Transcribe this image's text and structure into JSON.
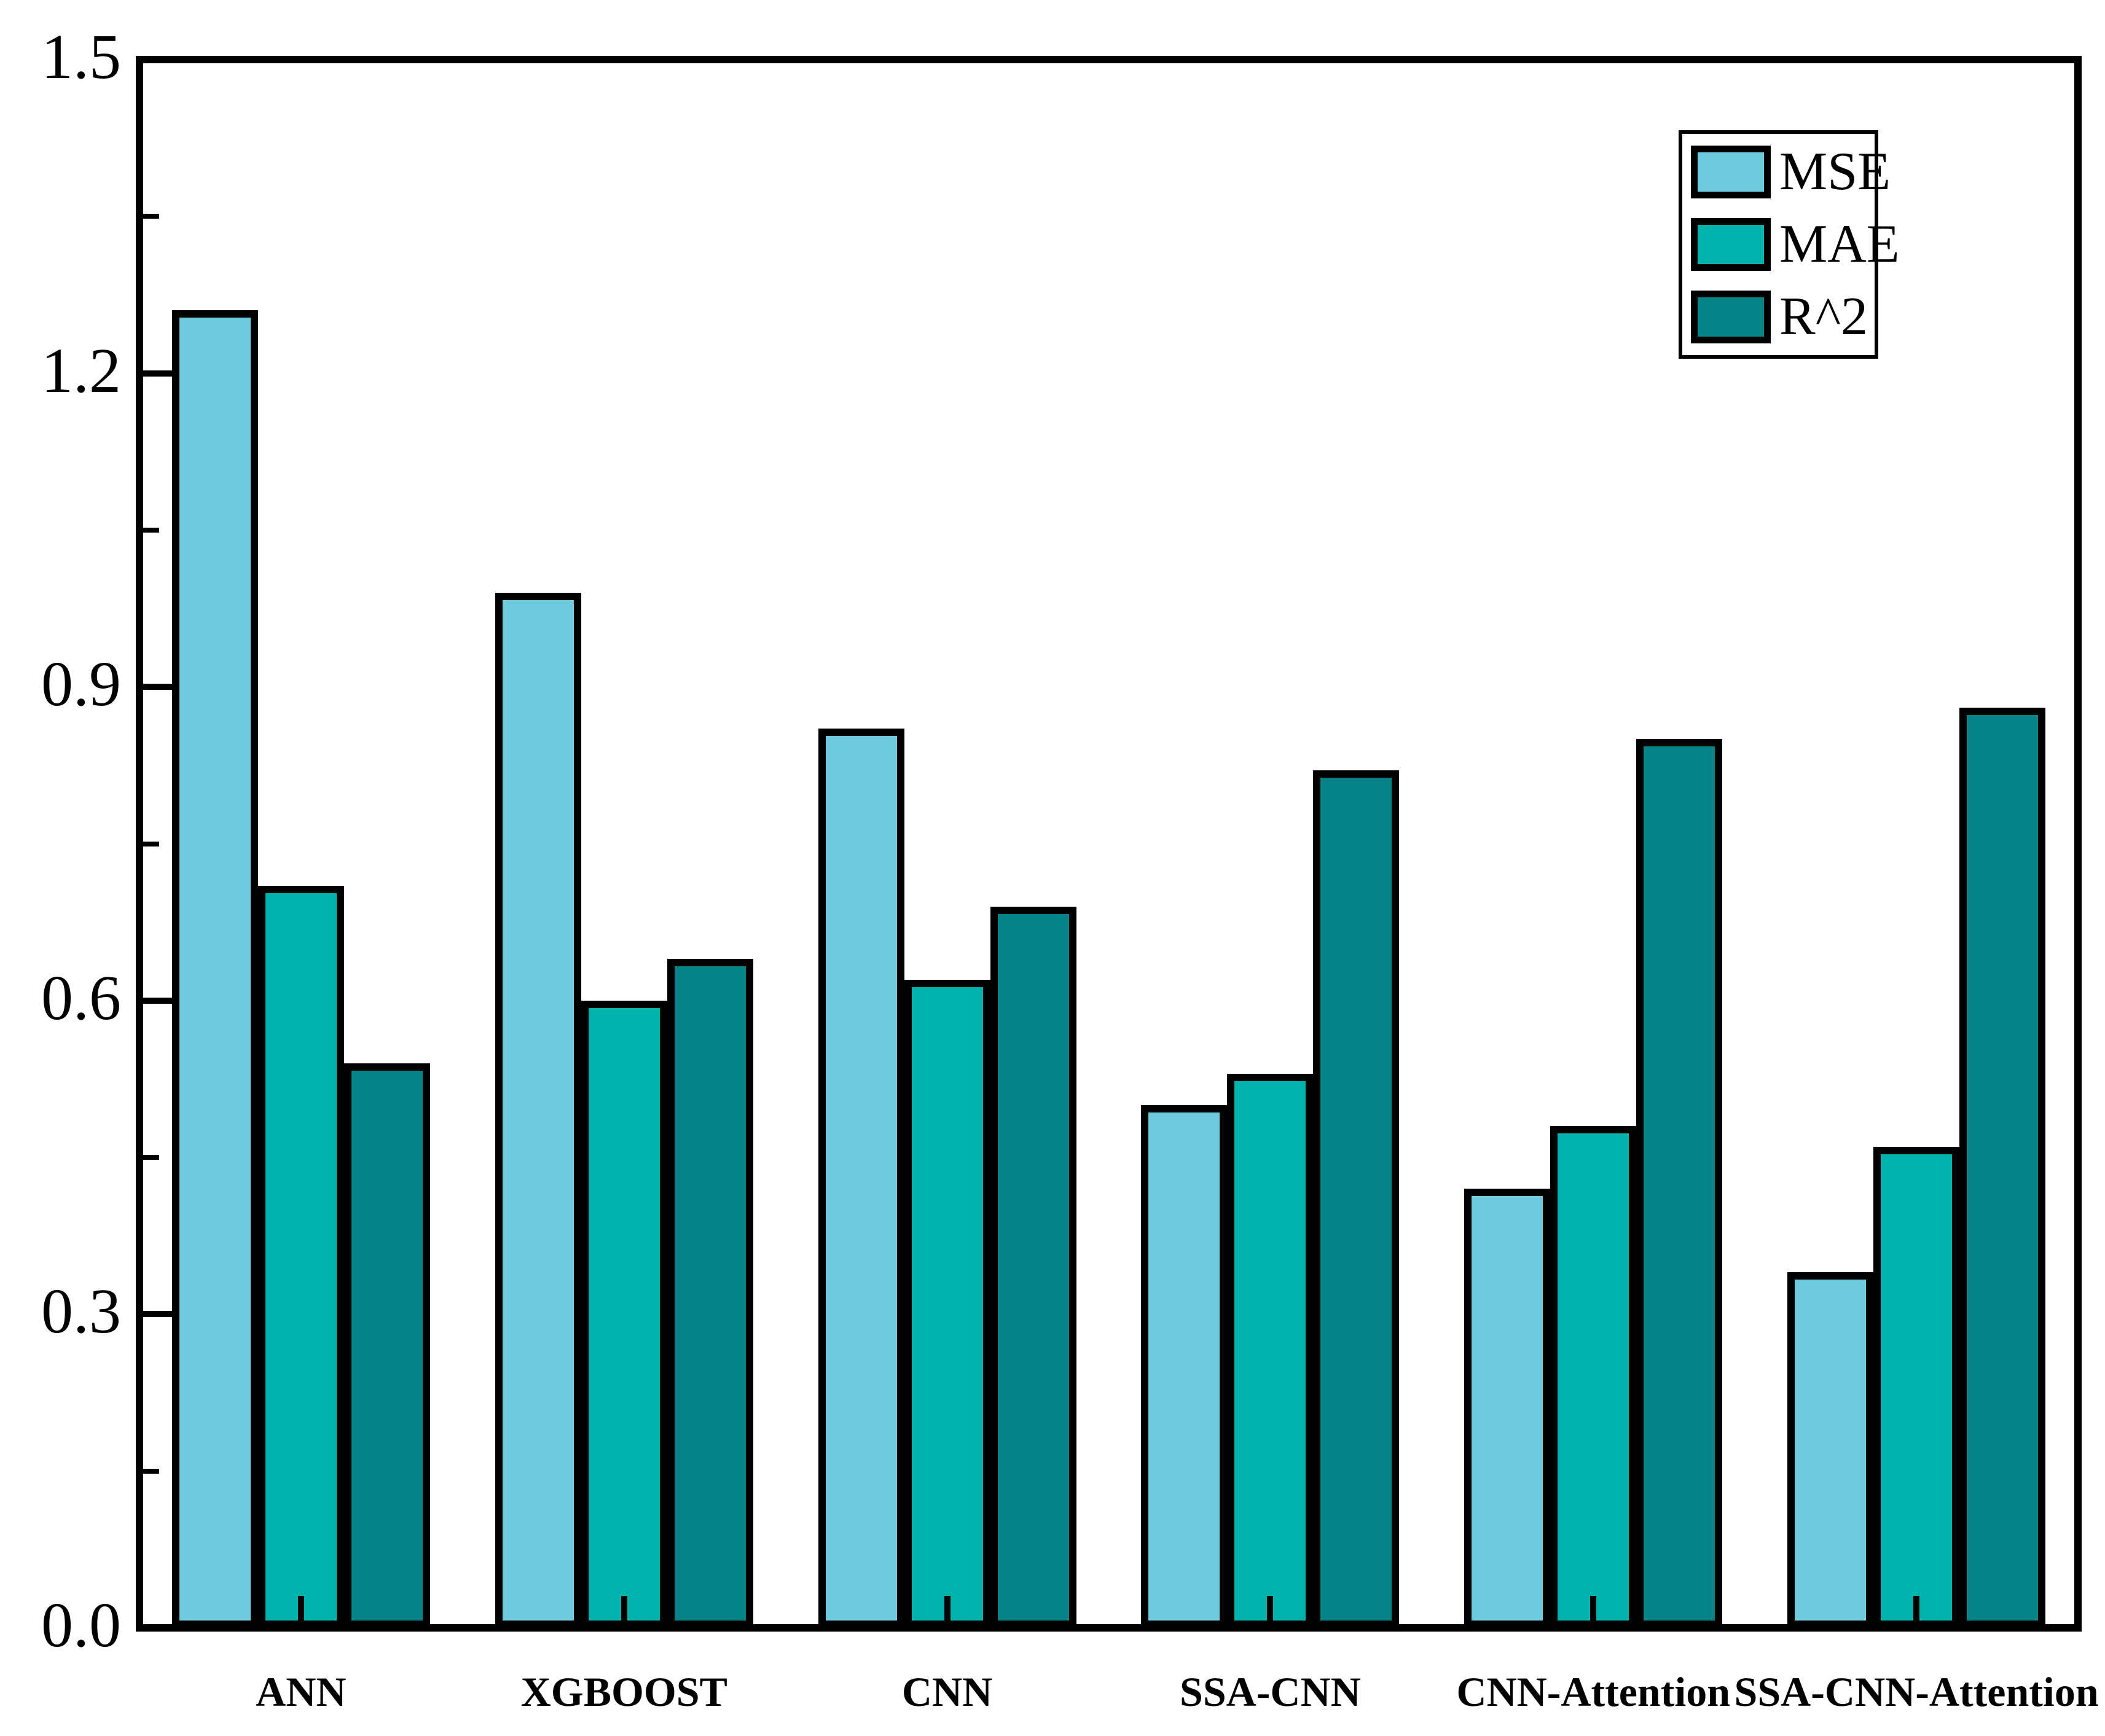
{
  "chart_data": {
    "type": "bar",
    "title": "",
    "xlabel": "",
    "ylabel": "",
    "categories": [
      "ANN",
      "XGBOOST",
      "CNN",
      "SSA-CNN",
      "CNN-Attention",
      "SSA-CNN-Attention"
    ],
    "series": [
      {
        "name": "MSE",
        "color": "#6dcbdd",
        "values": [
          1.26,
          0.99,
          0.86,
          0.5,
          0.42,
          0.34
        ]
      },
      {
        "name": "MAE",
        "color": "#00b2ac",
        "values": [
          0.71,
          0.6,
          0.62,
          0.53,
          0.48,
          0.46
        ]
      },
      {
        "name": "R^2",
        "color": "#058487",
        "values": [
          0.54,
          0.64,
          0.69,
          0.82,
          0.85,
          0.88
        ]
      }
    ],
    "ylim": [
      0.0,
      1.5
    ],
    "yticks": [
      0.0,
      0.3,
      0.6,
      0.9,
      1.2,
      1.5
    ],
    "ytick_labels": [
      "0.0",
      "0.3",
      "0.6",
      "0.9",
      "1.2",
      "1.5"
    ],
    "minor_ticks": [
      0.15,
      0.45,
      0.75,
      1.05,
      1.35
    ],
    "grid": false,
    "legend_position": "top-right",
    "bar_edge_color": "#000000",
    "axis_color": "#000000",
    "background_color": "#ffffff"
  }
}
